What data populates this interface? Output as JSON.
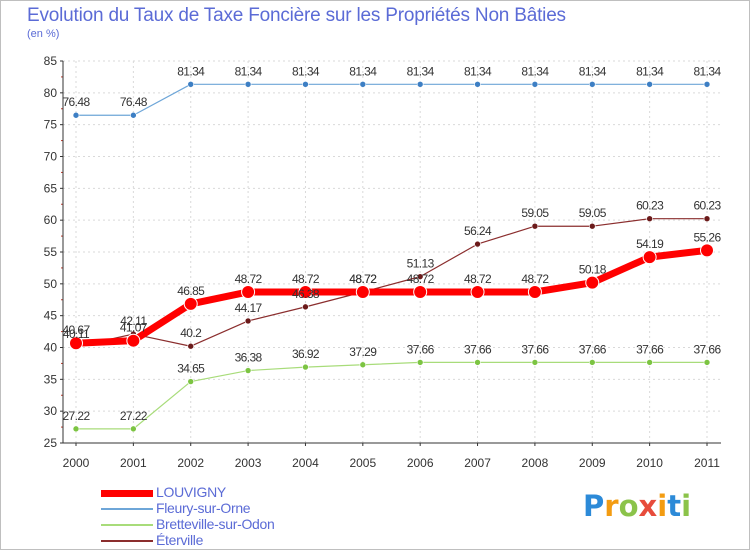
{
  "title": "Evolution du Taux de Taxe Foncière sur les Propriétés Non Bâties",
  "subtitle": "(en %)",
  "logo": {
    "letters": [
      "P",
      "r",
      "o",
      "x",
      "i",
      "t",
      "i"
    ],
    "colors": [
      "#2c8ad8",
      "#f39c12",
      "#8bc34a",
      "#e74c3c",
      "#f39c12",
      "#2c8ad8",
      "#8bc34a"
    ]
  },
  "chart_data": {
    "type": "line",
    "title": "Evolution du Taux de Taxe Foncière sur les Propriétés Non Bâties",
    "ylabel": "(en %)",
    "xlabel": "",
    "ylim": [
      25,
      85
    ],
    "yticks": [
      "25",
      "30",
      "35",
      "40",
      "45",
      "50",
      "55",
      "60",
      "65",
      "70",
      "75",
      "80",
      "85"
    ],
    "categories": [
      "2000",
      "2001",
      "2002",
      "2003",
      "2004",
      "2005",
      "2006",
      "2007",
      "2008",
      "2009",
      "2010",
      "2011"
    ],
    "legend_position": "bottom-left",
    "series": [
      {
        "name": "Fleury-sur-Orne",
        "color": "#6ea6d8",
        "marker": "#3d7fc4",
        "width": 1.2,
        "radius": 3,
        "values": [
          76.48,
          76.48,
          81.34,
          81.34,
          81.34,
          81.34,
          81.34,
          81.34,
          81.34,
          81.34,
          81.34,
          81.34
        ],
        "labels": [
          "76.48",
          "76.48",
          "81.34",
          "81.34",
          "81.34",
          "81.34",
          "81.34",
          "81.34",
          "81.34",
          "81.34",
          "81.34",
          "81.34"
        ]
      },
      {
        "name": "Bretteville-sur-Odon",
        "color": "#a8dc7a",
        "marker": "#7cc442",
        "width": 1.2,
        "radius": 3,
        "values": [
          27.22,
          27.22,
          34.65,
          36.38,
          36.92,
          37.29,
          37.66,
          37.66,
          37.66,
          37.66,
          37.66,
          37.66
        ],
        "labels": [
          "27.22",
          "27.22",
          "34.65",
          "36.38",
          "36.92",
          "37.29",
          "37.66",
          "37.66",
          "37.66",
          "37.66",
          "37.66",
          "37.66"
        ]
      },
      {
        "name": "Éterville",
        "color": "#8b2e2e",
        "marker": "#6b1a1a",
        "width": 1.2,
        "radius": 3,
        "values": [
          40.11,
          42.11,
          40.2,
          44.17,
          46.38,
          48.72,
          51.13,
          56.24,
          59.05,
          59.05,
          60.23,
          60.23
        ],
        "labels": [
          "40.11",
          "42.11",
          "40.2",
          "44.17",
          "46.38",
          "48.72",
          "51.13",
          "56.24",
          "59.05",
          "59.05",
          "60.23",
          "60.23"
        ]
      },
      {
        "name": "LOUVIGNY",
        "color": "#ff0000",
        "marker": "#ff0000",
        "width": 7,
        "radius": 6.5,
        "values": [
          40.67,
          41.07,
          46.85,
          48.72,
          48.72,
          48.72,
          48.72,
          48.72,
          48.72,
          50.18,
          54.19,
          55.26
        ],
        "labels": [
          "40.67",
          "41.07",
          "46.85",
          "48.72",
          "48.72",
          "48.72",
          "48.72",
          "48.72",
          "48.72",
          "50.18",
          "54.19",
          "55.26"
        ]
      }
    ]
  },
  "legend": [
    {
      "name": "LOUVIGNY",
      "color": "#ff0000",
      "thickness": 7
    },
    {
      "name": "Fleury-sur-Orne",
      "color": "#6ea6d8",
      "thickness": 2
    },
    {
      "name": "Bretteville-sur-Odon",
      "color": "#a8dc7a",
      "thickness": 2
    },
    {
      "name": "Éterville",
      "color": "#8b2e2e",
      "thickness": 2
    }
  ]
}
